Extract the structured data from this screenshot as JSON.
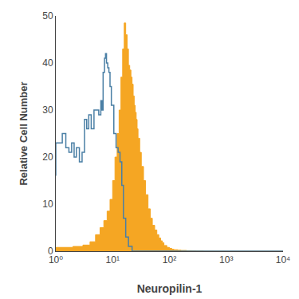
{
  "chart_data": {
    "type": "step",
    "xlabel": "Neuropilin-1",
    "ylabel": "Relative Cell Number",
    "log": "x",
    "grid": false,
    "xlim": [
      1,
      10000
    ],
    "xticks": [
      {
        "value": 1,
        "label": "10⁰"
      },
      {
        "value": 10,
        "label": "10¹"
      },
      {
        "value": 100,
        "label": "10²"
      },
      {
        "value": 1000,
        "label": "10³"
      },
      {
        "value": 10000,
        "label": "10⁴"
      }
    ],
    "ylim": [
      0,
      50
    ],
    "yticks": [
      0,
      10,
      20,
      30,
      40,
      50
    ],
    "series": [
      {
        "type": "area",
        "color": "#f5a623",
        "x": [
          1.0,
          2.0,
          3.0,
          4.0,
          5.0,
          6.0,
          7.0,
          8.0,
          9.0,
          10.0,
          11.0,
          12.0,
          13.0,
          14.0,
          15.0,
          16.0,
          17.0,
          18.0,
          19.0,
          20.0,
          21.0,
          22.0,
          23.0,
          24.0,
          25.0,
          26.0,
          27.0,
          28.0,
          30.0,
          32.0,
          35.0,
          38.0,
          42.0,
          46.0,
          50.0,
          55.0,
          60.0,
          65.0,
          70.0,
          75.0,
          80.0,
          90.0,
          100.0,
          110.0,
          120.0,
          140.0,
          160.0,
          200.0,
          250.0,
          300.0,
          400.0,
          600.0,
          1000.0,
          10000.0
        ],
        "values": [
          0.5,
          0.8,
          1.0,
          1.3,
          2.0,
          3.5,
          5.0,
          6.5,
          8.5,
          11.0,
          15.0,
          20.0,
          25.0,
          30.0,
          37.0,
          43.0,
          48.5,
          46.0,
          43.0,
          39.5,
          38.5,
          37.0,
          35.5,
          33.0,
          31.0,
          29.5,
          28.0,
          26.0,
          24.0,
          21.0,
          18.0,
          15.0,
          12.0,
          9.0,
          7.0,
          5.5,
          4.5,
          3.5,
          2.8,
          2.2,
          1.8,
          1.2,
          0.8,
          0.6,
          0.4,
          0.3,
          0.2,
          0.15,
          0.1,
          0.08,
          0.05,
          0.02,
          0.01,
          0.0
        ]
      },
      {
        "type": "line",
        "color": "#4a7fa5",
        "x": [
          1.0,
          1.3,
          1.5,
          1.7,
          1.9,
          2.1,
          2.3,
          2.6,
          2.9,
          3.2,
          3.5,
          3.8,
          4.2,
          4.7,
          5.2,
          5.7,
          6.2,
          6.5,
          6.8,
          7.2,
          7.5,
          7.8,
          8.2,
          8.6,
          9.0,
          9.5,
          10.5,
          11.5,
          12.5,
          13.5,
          14.5,
          15.5,
          17.0,
          19.0,
          22.0,
          28.0,
          40.0,
          100.0,
          10000.0
        ],
        "values": [
          16,
          23,
          25,
          22,
          21,
          23,
          20,
          22,
          19,
          21,
          28,
          26,
          29,
          26,
          30,
          30,
          29,
          32,
          30,
          38,
          41,
          42,
          40,
          39,
          38,
          35,
          31,
          25,
          22,
          21,
          19,
          14,
          7,
          3,
          1,
          0,
          0,
          0,
          0
        ]
      }
    ]
  }
}
